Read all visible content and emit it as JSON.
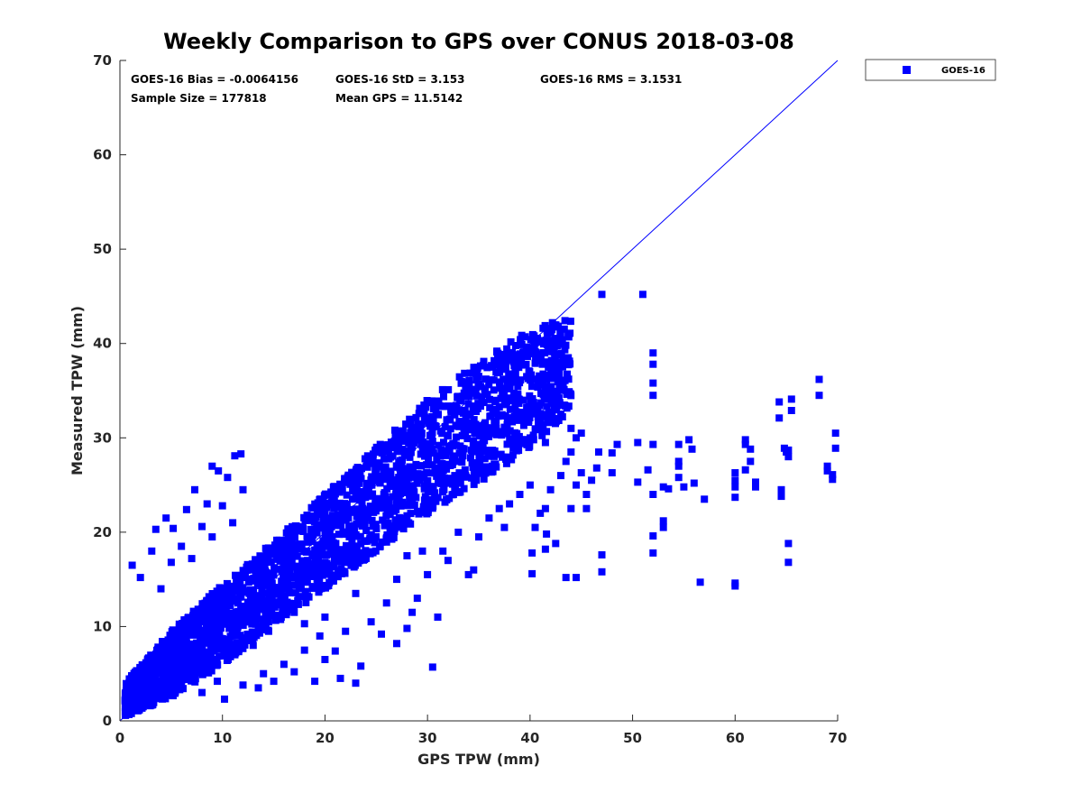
{
  "chart_data": {
    "type": "scatter",
    "title": "Weekly Comparison to GPS over CONUS 2018-03-08",
    "xlabel": "GPS TPW (mm)",
    "ylabel": "Measured TPW (mm)",
    "xlim": [
      0,
      70
    ],
    "ylim": [
      0,
      70
    ],
    "xticks": [
      "0",
      "10",
      "20",
      "30",
      "40",
      "50",
      "60",
      "70"
    ],
    "yticks": [
      "0",
      "10",
      "20",
      "30",
      "40",
      "50",
      "60",
      "70"
    ],
    "grid": false,
    "legend": {
      "position": "top-right",
      "entries": [
        "GOES-16"
      ]
    },
    "annotations": [
      "GOES-16 Bias = -0.0064156",
      "GOES-16 StD = 3.153",
      "GOES-16 RMS = 3.1531",
      "Sample Size = 177818",
      "Mean GPS = 11.5142"
    ],
    "reference_line": {
      "x": [
        0,
        70
      ],
      "y": [
        0,
        70
      ],
      "color": "#0000ff"
    },
    "series": [
      {
        "name": "GOES-16",
        "color": "#0000ff",
        "density_band": {
          "x": [
            0.5,
            5,
            10,
            15,
            20,
            25,
            30,
            35,
            40,
            44
          ],
          "lower": [
            0.5,
            2.5,
            6,
            10,
            14,
            18,
            22,
            25,
            29,
            33
          ],
          "upper": [
            4,
            9.5,
            14.5,
            19,
            24,
            29,
            34,
            38,
            41.5,
            43
          ]
        },
        "points": [
          [
            1.2,
            16.5
          ],
          [
            2,
            15.2
          ],
          [
            3.1,
            18
          ],
          [
            3.5,
            20.3
          ],
          [
            4.5,
            21.5
          ],
          [
            5.2,
            20.4
          ],
          [
            6.5,
            22.4
          ],
          [
            7.3,
            24.5
          ],
          [
            8.5,
            23
          ],
          [
            9,
            27
          ],
          [
            9.6,
            26.5
          ],
          [
            10.5,
            25.8
          ],
          [
            11.2,
            28.1
          ],
          [
            11.8,
            28.3
          ],
          [
            5,
            16.8
          ],
          [
            6,
            18.5
          ],
          [
            7,
            17.2
          ],
          [
            8,
            20.6
          ],
          [
            10,
            22.8
          ],
          [
            12,
            24.5
          ],
          [
            4,
            14
          ],
          [
            9,
            19.5
          ],
          [
            11,
            21
          ],
          [
            5,
            3.5
          ],
          [
            6,
            3.8
          ],
          [
            8,
            3
          ],
          [
            9.5,
            4.2
          ],
          [
            10.2,
            2.3
          ],
          [
            12,
            3.8
          ],
          [
            13.5,
            3.5
          ],
          [
            14,
            5
          ],
          [
            15,
            4.2
          ],
          [
            16,
            6
          ],
          [
            17,
            5.2
          ],
          [
            18,
            7.5
          ],
          [
            19,
            4.2
          ],
          [
            20,
            6.5
          ],
          [
            21.5,
            4.5
          ],
          [
            23,
            4
          ],
          [
            23.5,
            5.8
          ],
          [
            21,
            7.4
          ],
          [
            19.5,
            9
          ],
          [
            18,
            10.3
          ],
          [
            17,
            11.5
          ],
          [
            16,
            12
          ],
          [
            13,
            8
          ],
          [
            14.5,
            9.5
          ],
          [
            20,
            11
          ],
          [
            22,
            9.5
          ],
          [
            23,
            13.5
          ],
          [
            24.5,
            10.5
          ],
          [
            25.5,
            9.2
          ],
          [
            26,
            12.5
          ],
          [
            27,
            8.2
          ],
          [
            28,
            9.8
          ],
          [
            28.5,
            11.5
          ],
          [
            29,
            13
          ],
          [
            30,
            15.5
          ],
          [
            30.5,
            5.7
          ],
          [
            31,
            11
          ],
          [
            27,
            15
          ],
          [
            28,
            17.5
          ],
          [
            29.5,
            18
          ],
          [
            31.5,
            18
          ],
          [
            32,
            17
          ],
          [
            33,
            20
          ],
          [
            34,
            15.5
          ],
          [
            34.5,
            16
          ],
          [
            35,
            19.5
          ],
          [
            36,
            21.5
          ],
          [
            37,
            22.5
          ],
          [
            37.5,
            20.5
          ],
          [
            38,
            23
          ],
          [
            39,
            24
          ],
          [
            40,
            25
          ],
          [
            40.5,
            20.5
          ],
          [
            41,
            22
          ],
          [
            41.5,
            22.5
          ],
          [
            42,
            24.5
          ],
          [
            43,
            26
          ],
          [
            43.5,
            27.5
          ],
          [
            44,
            28.5
          ],
          [
            44.5,
            30
          ],
          [
            45,
            30.5
          ],
          [
            43,
            32.5
          ],
          [
            44,
            31
          ],
          [
            41.5,
            29.5
          ],
          [
            40.2,
            17.8
          ],
          [
            40.2,
            15.6
          ],
          [
            41.5,
            18.2
          ],
          [
            41.6,
            19.8
          ],
          [
            42.5,
            18.8
          ],
          [
            43.5,
            15.2
          ],
          [
            44.5,
            15.2
          ],
          [
            44,
            22.5
          ],
          [
            44.5,
            25
          ],
          [
            45,
            26.3
          ],
          [
            46,
            25.5
          ],
          [
            46.5,
            26.8
          ],
          [
            47,
            17.6
          ],
          [
            47,
            15.8
          ],
          [
            45.5,
            24
          ],
          [
            45.5,
            22.5
          ],
          [
            46.7,
            28.5
          ],
          [
            48,
            28.4
          ],
          [
            48,
            26.3
          ],
          [
            48.5,
            29.3
          ],
          [
            47,
            45.2
          ],
          [
            51,
            45.2
          ],
          [
            50.5,
            29.5
          ],
          [
            50.5,
            25.3
          ],
          [
            51.5,
            26.6
          ],
          [
            52,
            39
          ],
          [
            52,
            37.8
          ],
          [
            52,
            35.8
          ],
          [
            52,
            34.5
          ],
          [
            52,
            29.3
          ],
          [
            52,
            24
          ],
          [
            52,
            19.6
          ],
          [
            52,
            17.8
          ],
          [
            53,
            21.2
          ],
          [
            53,
            20.5
          ],
          [
            53,
            24.8
          ],
          [
            53.5,
            24.6
          ],
          [
            54.5,
            27.5
          ],
          [
            54.5,
            29.3
          ],
          [
            54.5,
            27
          ],
          [
            54.5,
            25.8
          ],
          [
            55,
            24.8
          ],
          [
            55.5,
            29.8
          ],
          [
            55.8,
            28.8
          ],
          [
            56,
            25.2
          ],
          [
            56.6,
            14.7
          ],
          [
            57,
            23.5
          ],
          [
            60,
            26.3
          ],
          [
            60,
            25.5
          ],
          [
            60,
            24.8
          ],
          [
            60,
            23.7
          ],
          [
            60,
            14.6
          ],
          [
            60,
            14.3
          ],
          [
            61,
            29.8
          ],
          [
            61,
            29.3
          ],
          [
            61,
            26.6
          ],
          [
            61.5,
            28.8
          ],
          [
            61.5,
            27.5
          ],
          [
            62,
            25.3
          ],
          [
            62,
            24.8
          ],
          [
            64.3,
            33.8
          ],
          [
            64.3,
            32.1
          ],
          [
            64.5,
            24.5
          ],
          [
            64.5,
            23.8
          ],
          [
            64.8,
            28.9
          ],
          [
            65,
            28.5
          ],
          [
            65.2,
            28.7
          ],
          [
            65.2,
            28
          ],
          [
            65.2,
            18.8
          ],
          [
            65.2,
            16.8
          ],
          [
            65.5,
            34.1
          ],
          [
            65.5,
            32.9
          ],
          [
            68.2,
            36.2
          ],
          [
            68.2,
            34.5
          ],
          [
            69,
            27
          ],
          [
            69,
            26.5
          ],
          [
            69.5,
            26.1
          ],
          [
            69.5,
            25.6
          ],
          [
            69.8,
            30.5
          ],
          [
            69.8,
            28.9
          ]
        ]
      }
    ]
  }
}
